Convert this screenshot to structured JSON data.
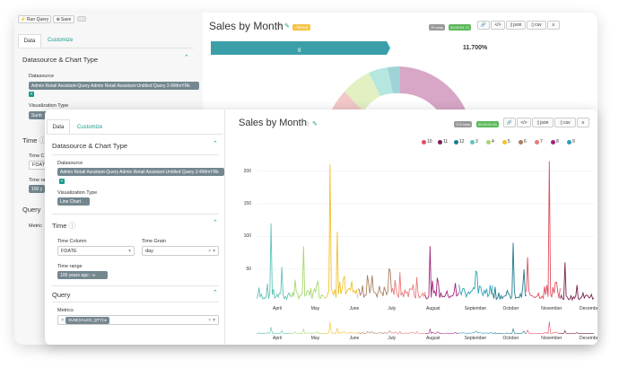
{
  "back": {
    "toolbar": {
      "run": "Run Query",
      "save": "Save"
    },
    "tabs": {
      "data": "Data",
      "customize": "Customize"
    },
    "section_ds": "Datasource & Chart Type",
    "ds_label": "Datasource",
    "ds_value": "Admin Retail Assistant-Query Admin Retail Assistant-Untitled Query 2-RMmYRk",
    "vis_label": "Visualization Type",
    "vis_value": "Sunb",
    "time": "Time",
    "time_col_label": "Time C",
    "time_col_value": "FDATE",
    "time_range_label": "Time ra",
    "time_range_value": "100 y",
    "query": "Query",
    "metrics_label": "Metric",
    "title": "Sales by Month",
    "star": "☆",
    "edit": "✎",
    "badge": "Altered",
    "rows": "76 rows",
    "timer": "00:00:01.71",
    "actions": {
      "link": "🔗",
      "code": "</>",
      "json": "json",
      "csv": "csv",
      "menu": "≡"
    },
    "bar_label": "9",
    "pct": "11.700%"
  },
  "front": {
    "tabs": {
      "data": "Data",
      "customize": "Customize"
    },
    "section_ds": "Datasource & Chart Type",
    "ds_label": "Datasource",
    "ds_value": "Admin Retail Assistant-Query Admin Retail Assistant-Untitled Query 2-RMmYRk",
    "vis_label": "Visualization Type",
    "vis_value": "Line Chart",
    "time": "Time",
    "time_col_label": "Time Column",
    "time_col_value": "FDATE",
    "time_grain_label": "Time Grain",
    "time_grain_value": "day",
    "time_range_label": "Time range",
    "time_range_value": "100 years ago : ∞",
    "query": "Query",
    "metrics_label": "Metrics",
    "metric_value": "SUM(SALES_QTY)",
    "title": "Sales by Month",
    "star": "☆",
    "edit": "✎",
    "rows": "174 rows",
    "timer": "00:00:02.61",
    "actions": {
      "link": "🔗",
      "code": "</>",
      "json": "json",
      "csv": "csv",
      "menu": "≡"
    }
  },
  "chart_data": {
    "type": "line",
    "series": [
      {
        "name": "10",
        "color": "#e04f5f"
      },
      {
        "name": "11",
        "color": "#7b1f4e"
      },
      {
        "name": "12",
        "color": "#1f7a8c"
      },
      {
        "name": "3",
        "color": "#5ec5b8"
      },
      {
        "name": "4",
        "color": "#a8d86e"
      },
      {
        "name": "5",
        "color": "#f2c12e"
      },
      {
        "name": "6",
        "color": "#a87d5f"
      },
      {
        "name": "7",
        "color": "#e97a7a"
      },
      {
        "name": "8",
        "color": "#a0247a"
      },
      {
        "name": "9",
        "color": "#2aa0b8"
      }
    ],
    "x_labels": [
      "April",
      "May",
      "June",
      "July",
      "August",
      "September",
      "October",
      "November",
      "December"
    ],
    "yticks": [
      200,
      150,
      100,
      50
    ],
    "ylim": [
      0,
      220
    ],
    "months": [
      {
        "color": "#5ec5b8",
        "peak": 120,
        "base": 8
      },
      {
        "color": "#a8d86e",
        "peak": 85,
        "base": 10
      },
      {
        "color": "#f2c12e",
        "peak": 210,
        "base": 12
      },
      {
        "color": "#a87d5f",
        "peak": 40,
        "base": 15
      },
      {
        "color": "#e97a7a",
        "peak": 45,
        "base": 12
      },
      {
        "color": "#a0247a",
        "peak": 85,
        "base": 10
      },
      {
        "color": "#2aa0b8",
        "peak": 45,
        "base": 15
      },
      {
        "color": "#1f7a8c",
        "peak": 90,
        "base": 8
      },
      {
        "color": "#e04f5f",
        "peak": 215,
        "base": 10
      },
      {
        "color": "#7b1f4e",
        "peak": 60,
        "base": 6
      }
    ]
  }
}
